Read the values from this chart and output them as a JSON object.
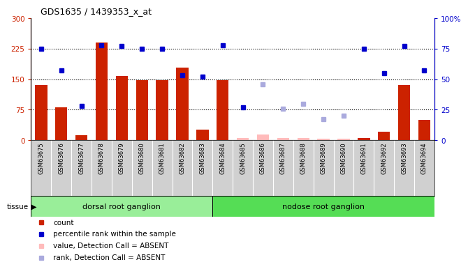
{
  "title": "GDS1635 / 1439353_x_at",
  "samples": [
    "GSM63675",
    "GSM63676",
    "GSM63677",
    "GSM63678",
    "GSM63679",
    "GSM63680",
    "GSM63681",
    "GSM63682",
    "GSM63683",
    "GSM63684",
    "GSM63685",
    "GSM63686",
    "GSM63687",
    "GSM63688",
    "GSM63689",
    "GSM63690",
    "GSM63691",
    "GSM63692",
    "GSM63693",
    "GSM63694"
  ],
  "bar_values": [
    135,
    80,
    12,
    240,
    158,
    148,
    148,
    178,
    25,
    148,
    5,
    13,
    5,
    5,
    3,
    3,
    5,
    20,
    135,
    50
  ],
  "bar_absent": [
    false,
    false,
    false,
    false,
    false,
    false,
    false,
    false,
    false,
    false,
    true,
    true,
    true,
    true,
    true,
    true,
    false,
    false,
    false,
    false
  ],
  "rank_values": [
    75,
    57,
    28,
    78,
    77,
    75,
    75,
    53,
    52,
    78,
    27,
    46,
    26,
    30,
    17,
    20,
    75,
    55,
    77,
    57
  ],
  "rank_absent": [
    false,
    false,
    false,
    false,
    false,
    false,
    false,
    false,
    false,
    false,
    false,
    true,
    true,
    true,
    true,
    true,
    false,
    false,
    false,
    false
  ],
  "tissue_groups": [
    {
      "label": "dorsal root ganglion",
      "start": 0,
      "end": 9
    },
    {
      "label": "nodose root ganglion",
      "start": 9,
      "end": 20
    }
  ],
  "bar_color": "#cc2200",
  "bar_absent_color": "#ffbbbb",
  "rank_color": "#0000cc",
  "rank_absent_color": "#aaaadd",
  "ylim_left": [
    0,
    300
  ],
  "ylim_right": [
    0,
    100
  ],
  "yticks_left": [
    0,
    75,
    150,
    225,
    300
  ],
  "yticks_right": [
    0,
    25,
    50,
    75,
    100
  ],
  "hlines": [
    75,
    150,
    225
  ],
  "xticklabel_bg": "#d0d0d0",
  "tissue_color_drg": "#99ee99",
  "tissue_color_nrg": "#55dd55"
}
